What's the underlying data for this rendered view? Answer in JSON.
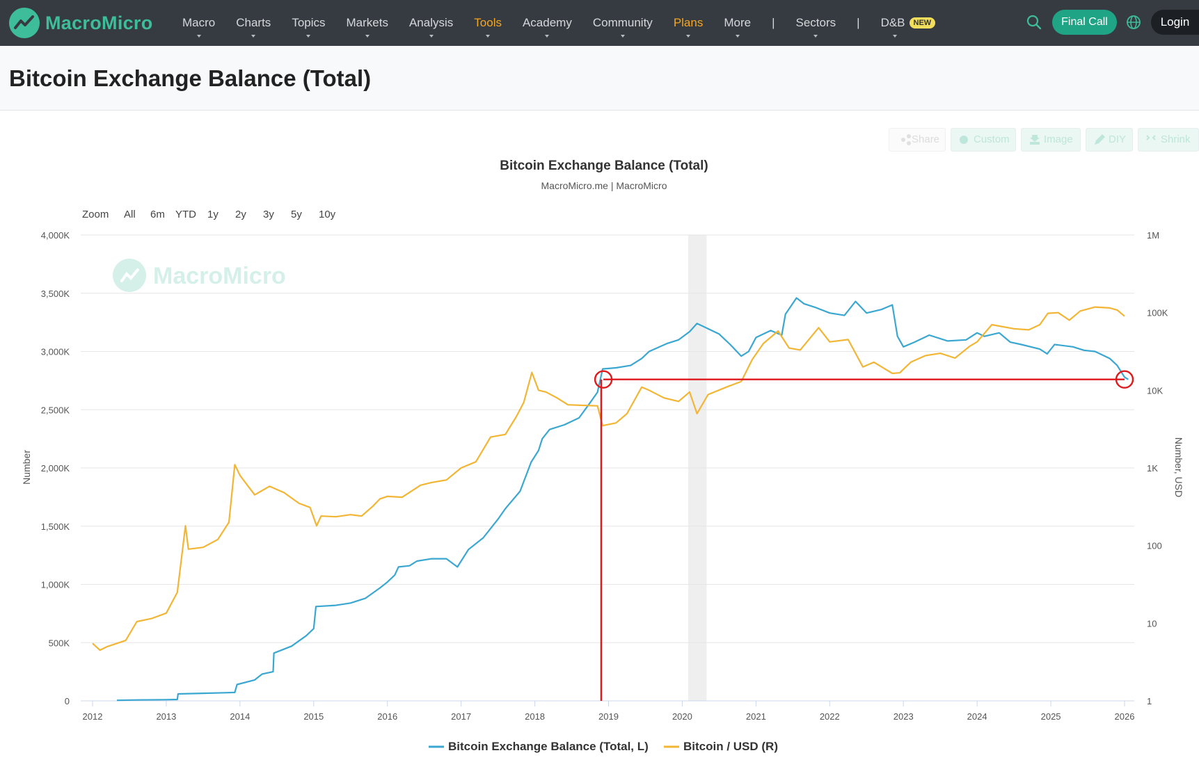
{
  "nav": {
    "logo_text": "MacroMicro",
    "menu": [
      {
        "label": "Macro",
        "highlight": false
      },
      {
        "label": "Charts",
        "highlight": false
      },
      {
        "label": "Topics",
        "highlight": false
      },
      {
        "label": "Markets",
        "highlight": false
      },
      {
        "label": "Analysis",
        "highlight": false
      },
      {
        "label": "Tools",
        "highlight": true
      },
      {
        "label": "Academy",
        "highlight": false
      },
      {
        "label": "Community",
        "highlight": false
      },
      {
        "label": "Plans",
        "highlight": true
      }
    ],
    "more_label": "More",
    "sectors_label": "Sectors",
    "db_label": "D&B",
    "new_badge": "NEW",
    "separator": "|",
    "final_call_label": "Final Call",
    "login_label": "Login",
    "accent_color": "#1fa485",
    "bg_color": "#353b41"
  },
  "page": {
    "title": "Bitcoin Exchange Balance (Total)"
  },
  "toolbar": {
    "share": "Share",
    "custom": "Custom",
    "image": "Image",
    "diy": "DIY",
    "shrink": "Shrink"
  },
  "chart_data": {
    "type": "line",
    "title": "Bitcoin Exchange Balance (Total)",
    "subtitle": "MacroMicro.me | MacroMicro",
    "watermark": "MacroMicro",
    "zoom": {
      "label": "Zoom",
      "options": [
        "All",
        "6m",
        "YTD",
        "1y",
        "2y",
        "3y",
        "5y",
        "10y"
      ]
    },
    "x_ticks": [
      "2012",
      "2013",
      "2014",
      "2015",
      "2016",
      "2017",
      "2018",
      "2019",
      "2020",
      "2021",
      "2022",
      "2023",
      "2024",
      "2025",
      "2026"
    ],
    "xlim": [
      2012.0,
      2026.1
    ],
    "left_axis": {
      "label": "Number",
      "ticks": [
        "0",
        "500K",
        "1,000K",
        "1,500K",
        "2,000K",
        "2,500K",
        "3,000K",
        "3,500K",
        "4,000K"
      ],
      "ylim": [
        0,
        4000000
      ]
    },
    "right_axis": {
      "label": "Number, USD",
      "scale": "log",
      "ticks": [
        "1",
        "10",
        "100",
        "1K",
        "10K",
        "100K",
        "1M"
      ],
      "ylim": [
        1,
        1000000
      ]
    },
    "shaded_region": {
      "x": [
        2020.08,
        2020.33
      ]
    },
    "grid": true,
    "legend_position": "bottom",
    "series": [
      {
        "name": "Bitcoin Exchange Balance (Total, L)",
        "axis": "left",
        "color": "#3aa7d1",
        "points": [
          [
            2012.33,
            5000
          ],
          [
            2012.6,
            8000
          ],
          [
            2013.0,
            10000
          ],
          [
            2013.15,
            12000
          ],
          [
            2013.16,
            60000
          ],
          [
            2013.5,
            65000
          ],
          [
            2013.8,
            70000
          ],
          [
            2013.93,
            72000
          ],
          [
            2013.96,
            140000
          ],
          [
            2014.2,
            180000
          ],
          [
            2014.3,
            230000
          ],
          [
            2014.45,
            250000
          ],
          [
            2014.46,
            410000
          ],
          [
            2014.7,
            470000
          ],
          [
            2014.9,
            560000
          ],
          [
            2015.0,
            620000
          ],
          [
            2015.03,
            810000
          ],
          [
            2015.3,
            820000
          ],
          [
            2015.5,
            840000
          ],
          [
            2015.7,
            880000
          ],
          [
            2015.9,
            970000
          ],
          [
            2016.0,
            1020000
          ],
          [
            2016.1,
            1080000
          ],
          [
            2016.15,
            1150000
          ],
          [
            2016.3,
            1160000
          ],
          [
            2016.4,
            1200000
          ],
          [
            2016.6,
            1220000
          ],
          [
            2016.8,
            1220000
          ],
          [
            2016.95,
            1150000
          ],
          [
            2017.1,
            1300000
          ],
          [
            2017.3,
            1400000
          ],
          [
            2017.5,
            1560000
          ],
          [
            2017.6,
            1650000
          ],
          [
            2017.8,
            1800000
          ],
          [
            2017.95,
            2050000
          ],
          [
            2018.05,
            2150000
          ],
          [
            2018.1,
            2250000
          ],
          [
            2018.2,
            2330000
          ],
          [
            2018.4,
            2370000
          ],
          [
            2018.6,
            2430000
          ],
          [
            2018.75,
            2560000
          ],
          [
            2018.85,
            2650000
          ],
          [
            2018.92,
            2850000
          ],
          [
            2019.1,
            2860000
          ],
          [
            2019.3,
            2880000
          ],
          [
            2019.45,
            2940000
          ],
          [
            2019.55,
            3000000
          ],
          [
            2019.8,
            3070000
          ],
          [
            2019.95,
            3100000
          ],
          [
            2020.1,
            3170000
          ],
          [
            2020.2,
            3240000
          ],
          [
            2020.3,
            3210000
          ],
          [
            2020.5,
            3150000
          ],
          [
            2020.65,
            3060000
          ],
          [
            2020.8,
            2960000
          ],
          [
            2020.9,
            3000000
          ],
          [
            2021.0,
            3120000
          ],
          [
            2021.2,
            3180000
          ],
          [
            2021.35,
            3140000
          ],
          [
            2021.4,
            3320000
          ],
          [
            2021.55,
            3460000
          ],
          [
            2021.65,
            3410000
          ],
          [
            2021.8,
            3380000
          ],
          [
            2022.0,
            3330000
          ],
          [
            2022.2,
            3310000
          ],
          [
            2022.35,
            3430000
          ],
          [
            2022.5,
            3330000
          ],
          [
            2022.7,
            3360000
          ],
          [
            2022.85,
            3400000
          ],
          [
            2022.92,
            3130000
          ],
          [
            2023.0,
            3040000
          ],
          [
            2023.15,
            3080000
          ],
          [
            2023.35,
            3140000
          ],
          [
            2023.6,
            3090000
          ],
          [
            2023.85,
            3100000
          ],
          [
            2024.0,
            3160000
          ],
          [
            2024.1,
            3130000
          ],
          [
            2024.3,
            3160000
          ],
          [
            2024.45,
            3080000
          ],
          [
            2024.6,
            3060000
          ],
          [
            2024.85,
            3020000
          ],
          [
            2024.95,
            2980000
          ],
          [
            2025.05,
            3060000
          ],
          [
            2025.3,
            3040000
          ],
          [
            2025.45,
            3010000
          ],
          [
            2025.6,
            3000000
          ],
          [
            2025.8,
            2940000
          ],
          [
            2025.9,
            2880000
          ],
          [
            2026.0,
            2780000
          ],
          [
            2026.05,
            2760000
          ]
        ]
      },
      {
        "name": "Bitcoin / USD (R)",
        "axis": "right",
        "color": "#f2b534",
        "points": [
          [
            2012.0,
            5.5
          ],
          [
            2012.1,
            4.5
          ],
          [
            2012.2,
            5.0
          ],
          [
            2012.45,
            6.0
          ],
          [
            2012.6,
            10.5
          ],
          [
            2012.8,
            11.5
          ],
          [
            2013.0,
            13.5
          ],
          [
            2013.15,
            25.0
          ],
          [
            2013.26,
            180.0
          ],
          [
            2013.3,
            90.0
          ],
          [
            2013.5,
            95.0
          ],
          [
            2013.7,
            120.0
          ],
          [
            2013.85,
            200.0
          ],
          [
            2013.93,
            1100.0
          ],
          [
            2014.0,
            800.0
          ],
          [
            2014.1,
            600.0
          ],
          [
            2014.2,
            450.0
          ],
          [
            2014.4,
            580.0
          ],
          [
            2014.6,
            480.0
          ],
          [
            2014.8,
            350.0
          ],
          [
            2014.95,
            310.0
          ],
          [
            2015.04,
            180.0
          ],
          [
            2015.1,
            240.0
          ],
          [
            2015.3,
            235.0
          ],
          [
            2015.5,
            250.0
          ],
          [
            2015.65,
            240.0
          ],
          [
            2015.8,
            320.0
          ],
          [
            2015.9,
            400.0
          ],
          [
            2016.0,
            430.0
          ],
          [
            2016.2,
            420.0
          ],
          [
            2016.45,
            600.0
          ],
          [
            2016.6,
            650.0
          ],
          [
            2016.8,
            700.0
          ],
          [
            2017.0,
            1000.0
          ],
          [
            2017.2,
            1200.0
          ],
          [
            2017.4,
            2500.0
          ],
          [
            2017.6,
            2700.0
          ],
          [
            2017.75,
            4600.0
          ],
          [
            2017.85,
            7000.0
          ],
          [
            2017.96,
            17000.0
          ],
          [
            2018.05,
            10000.0
          ],
          [
            2018.15,
            9500.0
          ],
          [
            2018.3,
            8000.0
          ],
          [
            2018.45,
            6500.0
          ],
          [
            2018.65,
            6400.0
          ],
          [
            2018.85,
            6300.0
          ],
          [
            2018.92,
            3500.0
          ],
          [
            2019.1,
            3800.0
          ],
          [
            2019.25,
            5000.0
          ],
          [
            2019.45,
            11000.0
          ],
          [
            2019.55,
            10000.0
          ],
          [
            2019.75,
            8000.0
          ],
          [
            2019.95,
            7200.0
          ],
          [
            2020.1,
            9500.0
          ],
          [
            2020.2,
            5000.0
          ],
          [
            2020.35,
            8800.0
          ],
          [
            2020.6,
            11000.0
          ],
          [
            2020.8,
            13000.0
          ],
          [
            2020.95,
            25000.0
          ],
          [
            2021.1,
            40000.0
          ],
          [
            2021.3,
            58000.0
          ],
          [
            2021.45,
            35000.0
          ],
          [
            2021.6,
            33000.0
          ],
          [
            2021.85,
            64000.0
          ],
          [
            2022.0,
            42000.0
          ],
          [
            2022.25,
            45000.0
          ],
          [
            2022.45,
            20000.0
          ],
          [
            2022.6,
            23000.0
          ],
          [
            2022.85,
            16500.0
          ],
          [
            2022.95,
            16800.0
          ],
          [
            2023.1,
            23000.0
          ],
          [
            2023.3,
            28000.0
          ],
          [
            2023.5,
            30000.0
          ],
          [
            2023.7,
            26000.0
          ],
          [
            2023.9,
            37000.0
          ],
          [
            2024.0,
            42000.0
          ],
          [
            2024.2,
            70000.0
          ],
          [
            2024.5,
            62000.0
          ],
          [
            2024.7,
            60000.0
          ],
          [
            2024.85,
            70000.0
          ],
          [
            2024.96,
            98000.0
          ],
          [
            2025.1,
            100000.0
          ],
          [
            2025.25,
            80000.0
          ],
          [
            2025.4,
            105000.0
          ],
          [
            2025.6,
            118000.0
          ],
          [
            2025.8,
            115000.0
          ],
          [
            2025.9,
            108000.0
          ],
          [
            2026.0,
            90000.0
          ]
        ]
      }
    ],
    "annotations": {
      "color": "#e0191c",
      "circles": [
        {
          "x": 2018.93,
          "y": 2760000
        },
        {
          "x": 2026.0,
          "y": 2760000
        }
      ],
      "hline": {
        "x1": 2018.93,
        "x2": 2026.0,
        "y": 2760000
      },
      "vline": {
        "x": 2018.9,
        "y1": 0,
        "y2": 2760000
      }
    }
  }
}
